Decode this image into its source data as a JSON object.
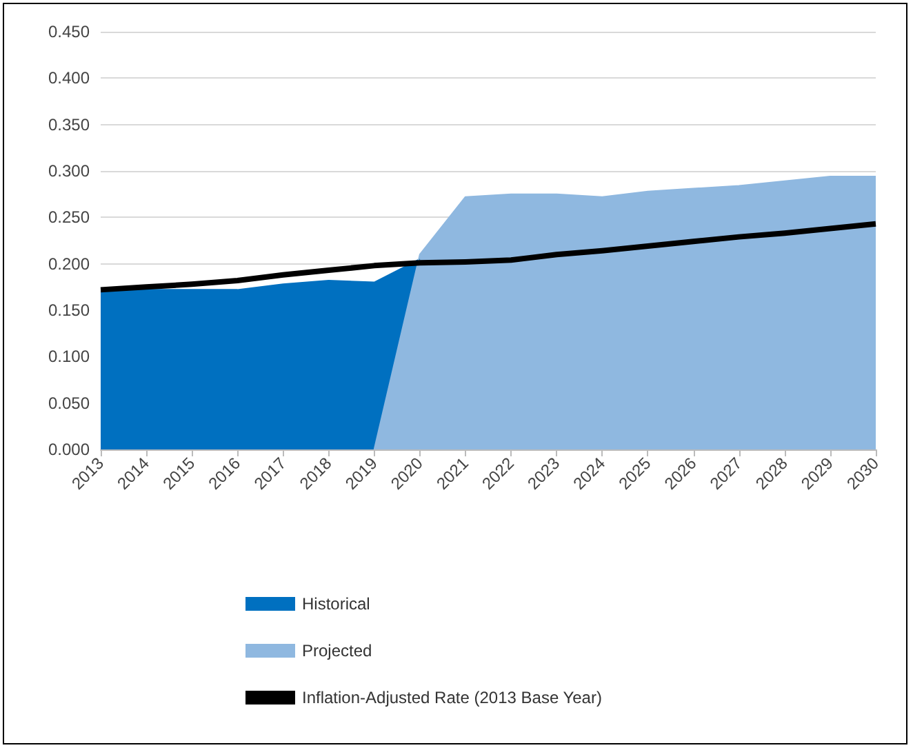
{
  "chart_data": {
    "type": "area",
    "categories": [
      "2013",
      "2014",
      "2015",
      "2016",
      "2017",
      "2018",
      "2019",
      "2020",
      "2021",
      "2022",
      "2023",
      "2024",
      "2025",
      "2026",
      "2027",
      "2028",
      "2029",
      "2030"
    ],
    "series": [
      {
        "name": "Historical",
        "color": "#0070c0",
        "values": [
          0.17,
          0.172,
          0.172,
          0.172,
          0.178,
          0.182,
          0.18,
          0.205,
          null,
          null,
          null,
          null,
          null,
          null,
          null,
          null,
          null,
          null
        ]
      },
      {
        "name": "Projected",
        "color": "#8fb8e0",
        "values": [
          null,
          null,
          null,
          null,
          null,
          null,
          0,
          0.21,
          0.272,
          0.275,
          0.275,
          0.272,
          0.278,
          0.281,
          0.284,
          0.289,
          0.294,
          0.294
        ]
      },
      {
        "name": "Inflation-Adjusted Rate (2013 Base Year)",
        "type": "line",
        "color": "#000000",
        "values": [
          0.172,
          0.175,
          0.178,
          0.182,
          0.188,
          0.193,
          0.198,
          0.201,
          0.202,
          0.204,
          0.21,
          0.214,
          0.219,
          0.224,
          0.229,
          0.233,
          0.238,
          0.243
        ]
      }
    ],
    "ylim": [
      0,
      0.45
    ],
    "yticks": [
      {
        "value": 0,
        "label": "0.000"
      },
      {
        "value": 0.05,
        "label": "0.050"
      },
      {
        "value": 0.1,
        "label": "0.100"
      },
      {
        "value": 0.15,
        "label": "0.150"
      },
      {
        "value": 0.2,
        "label": "0.200"
      },
      {
        "value": 0.25,
        "label": "0.250"
      },
      {
        "value": 0.3,
        "label": "0.300"
      },
      {
        "value": 0.35,
        "label": "0.350"
      },
      {
        "value": 0.4,
        "label": "0.400"
      },
      {
        "value": 0.45,
        "label": "0.450"
      }
    ],
    "grid": "y",
    "legend": "bottom",
    "marker": "none"
  }
}
